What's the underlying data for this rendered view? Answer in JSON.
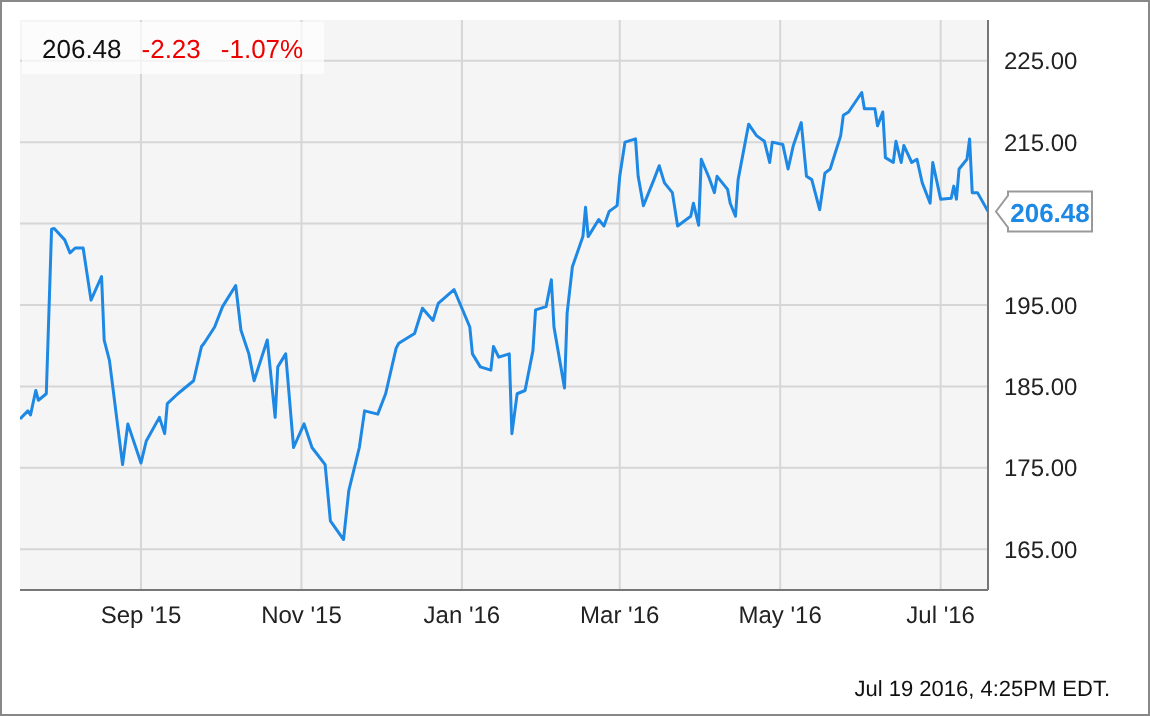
{
  "chart_data": {
    "type": "line",
    "title": "206.48",
    "annotations": [
      "-2.23",
      "-1.07%",
      "Jul 19 2016, 4:25PM EDT.",
      {
        "text": "206.48",
        "x": "2016-07-19",
        "y": 206.48
      }
    ],
    "x": [
      "2015-07-17",
      "2015-07-20",
      "2015-07-21",
      "2015-07-23",
      "2015-07-24",
      "2015-07-27",
      "2015-07-29",
      "2015-07-30",
      "2015-08-03",
      "2015-08-05",
      "2015-08-07",
      "2015-08-10",
      "2015-08-13",
      "2015-08-17",
      "2015-08-18",
      "2015-08-20",
      "2015-08-25",
      "2015-08-27",
      "2015-09-01",
      "2015-09-03",
      "2015-09-08",
      "2015-09-10",
      "2015-09-11",
      "2015-09-15",
      "2015-09-21",
      "2015-09-24",
      "2015-09-25",
      "2015-09-29",
      "2015-10-02",
      "2015-10-07",
      "2015-10-09",
      "2015-10-12",
      "2015-10-14",
      "2015-10-19",
      "2015-10-22",
      "2015-10-23",
      "2015-10-26",
      "2015-10-29",
      "2015-11-02",
      "2015-11-05",
      "2015-11-10",
      "2015-11-12",
      "2015-11-17",
      "2015-11-19",
      "2015-11-23",
      "2015-11-25",
      "2015-11-30",
      "2015-12-03",
      "2015-12-07",
      "2015-12-08",
      "2015-12-14",
      "2015-12-17",
      "2015-12-21",
      "2015-12-23",
      "2015-12-29",
      "2016-01-04",
      "2016-01-05",
      "2016-01-08",
      "2016-01-12",
      "2016-01-13",
      "2016-01-15",
      "2016-01-19",
      "2016-01-20",
      "2016-01-22",
      "2016-01-25",
      "2016-01-28",
      "2016-01-29",
      "2016-02-02",
      "2016-02-04",
      "2016-02-05",
      "2016-02-09",
      "2016-02-10",
      "2016-02-12",
      "2016-02-16",
      "2016-02-17",
      "2016-02-18",
      "2016-02-22",
      "2016-02-24",
      "2016-02-26",
      "2016-02-29",
      "2016-03-01",
      "2016-03-03",
      "2016-03-07",
      "2016-03-08",
      "2016-03-10",
      "2016-03-14",
      "2016-03-16",
      "2016-03-18",
      "2016-03-21",
      "2016-03-23",
      "2016-03-28",
      "2016-03-29",
      "2016-03-31",
      "2016-04-01",
      "2016-04-04",
      "2016-04-06",
      "2016-04-07",
      "2016-04-11",
      "2016-04-12",
      "2016-04-14",
      "2016-04-15",
      "2016-04-19",
      "2016-04-22",
      "2016-04-25",
      "2016-04-27",
      "2016-04-28",
      "2016-05-02",
      "2016-05-04",
      "2016-05-06",
      "2016-05-09",
      "2016-05-11",
      "2016-05-13",
      "2016-05-16",
      "2016-05-18",
      "2016-05-20",
      "2016-05-24",
      "2016-05-25",
      "2016-05-27",
      "2016-06-01",
      "2016-06-02",
      "2016-06-06",
      "2016-06-07",
      "2016-06-09",
      "2016-06-10",
      "2016-06-13",
      "2016-06-14",
      "2016-06-16",
      "2016-06-17",
      "2016-06-20",
      "2016-06-22",
      "2016-06-24",
      "2016-06-27",
      "2016-06-28",
      "2016-07-01",
      "2016-07-05",
      "2016-07-06",
      "2016-07-07",
      "2016-07-08",
      "2016-07-11",
      "2016-07-12",
      "2016-07-13",
      "2016-07-15",
      "2016-07-19"
    ],
    "series": [
      {
        "color": "#1e88e5",
        "values": [
          181.0,
          182.0,
          181.5,
          184.5,
          183.3,
          184.1,
          204.3,
          204.4,
          203.0,
          201.4,
          202.0,
          202.0,
          195.6,
          198.5,
          190.7,
          188.2,
          175.4,
          180.4,
          175.6,
          178.3,
          181.2,
          179.2,
          182.9,
          184.1,
          185.7,
          189.9,
          190.3,
          192.3,
          194.8,
          197.4,
          191.9,
          189.0,
          185.7,
          190.7,
          181.2,
          187.4,
          189.0,
          177.5,
          180.4,
          177.5,
          175.4,
          168.5,
          166.2,
          172.2,
          177.5,
          182.0,
          181.6,
          184.1,
          189.7,
          190.3,
          191.5,
          194.6,
          193.1,
          195.2,
          196.9,
          192.3,
          189.0,
          187.4,
          187.0,
          189.9,
          188.6,
          189.0,
          179.2,
          184.1,
          184.5,
          189.4,
          194.4,
          194.8,
          198.1,
          192.3,
          184.8,
          194.0,
          199.7,
          203.4,
          207.0,
          203.4,
          205.5,
          204.7,
          206.5,
          207.2,
          210.8,
          215.0,
          215.4,
          210.8,
          207.2,
          210.4,
          212.1,
          210.0,
          208.8,
          204.7,
          205.9,
          207.5,
          204.8,
          212.9,
          210.6,
          208.8,
          210.8,
          209.2,
          207.5,
          205.9,
          210.4,
          217.2,
          215.8,
          215.1,
          212.5,
          215.0,
          214.7,
          211.7,
          214.6,
          217.4,
          210.8,
          210.4,
          206.7,
          211.2,
          211.7,
          215.8,
          218.3,
          218.7,
          221.1,
          219.1,
          219.1,
          217.0,
          218.7,
          213.1,
          212.5,
          215.1,
          212.5,
          214.6,
          212.5,
          212.9,
          210.0,
          207.5,
          212.5,
          208.0,
          208.1,
          209.6,
          208.0,
          211.7,
          212.9,
          215.4,
          208.8,
          208.8,
          206.5
        ]
      }
    ],
    "xlim": [
      "2015-07-17",
      "2016-07-19"
    ],
    "xticks": [
      {
        "value": "2015-09-01",
        "label": "Sep '15"
      },
      {
        "value": "2015-11-01",
        "label": "Nov '15"
      },
      {
        "value": "2016-01-01",
        "label": "Jan '16"
      },
      {
        "value": "2016-03-01",
        "label": "Mar '16"
      },
      {
        "value": "2016-05-01",
        "label": "May '16"
      },
      {
        "value": "2016-07-01",
        "label": "Jul '16"
      }
    ],
    "ylim": [
      160,
      230
    ],
    "yticks": [
      {
        "value": 165,
        "label": "165.00"
      },
      {
        "value": 175,
        "label": "175.00"
      },
      {
        "value": 185,
        "label": "185.00"
      },
      {
        "value": 195,
        "label": "195.00"
      },
      {
        "value": 205,
        "label": null
      },
      {
        "value": 215,
        "label": "215.00"
      },
      {
        "value": 225,
        "label": "225.00"
      }
    ],
    "grid": true,
    "marker": "none",
    "line_style": "solid"
  }
}
